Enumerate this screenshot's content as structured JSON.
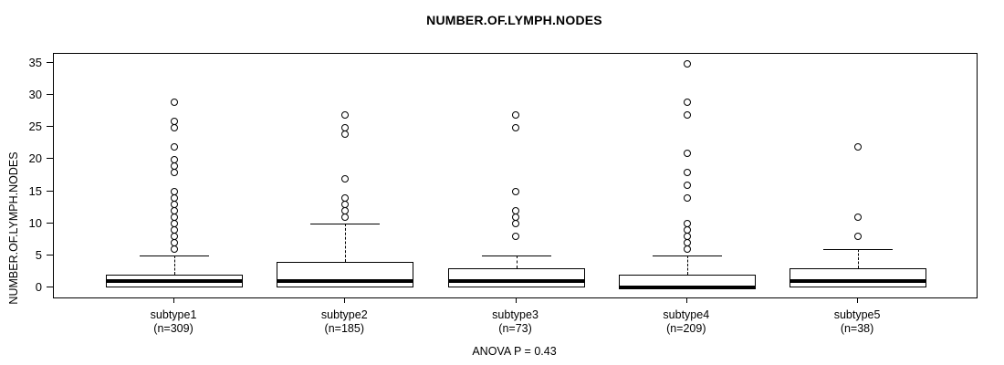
{
  "title": "NUMBER.OF.LYMPH.NODES",
  "footer": {
    "anova_text": "ANOVA P = 0.43"
  },
  "chart_data": {
    "type": "boxplot",
    "title": "NUMBER.OF.LYMPH.NODES",
    "ylabel": "NUMBER.OF.LYMPH.NODES",
    "xlabel": "",
    "ylim": [
      -1.57,
      36.57
    ],
    "yticks": [
      0,
      5,
      10,
      15,
      20,
      25,
      30,
      35
    ],
    "grid": false,
    "annotation": "ANOVA P = 0.43",
    "frame_color": "#000000",
    "box_fill": "#ffffff",
    "groups": [
      {
        "label": "subtype1",
        "n_label": "(n=309)",
        "n": 309,
        "whisker_low": 0,
        "q1": 0,
        "median": 1,
        "q3": 2,
        "whisker_high": 5,
        "outliers": [
          6,
          7,
          8,
          9,
          10,
          11,
          12,
          13,
          14,
          15,
          18,
          19,
          20,
          22,
          25,
          26,
          29
        ]
      },
      {
        "label": "subtype2",
        "n_label": "(n=185)",
        "n": 185,
        "whisker_low": 0,
        "q1": 0,
        "median": 1,
        "q3": 4,
        "whisker_high": 10,
        "outliers": [
          11,
          12,
          13,
          14,
          17,
          24,
          25,
          27
        ]
      },
      {
        "label": "subtype3",
        "n_label": "(n=73)",
        "n": 73,
        "whisker_low": 0,
        "q1": 0,
        "median": 1,
        "q3": 3,
        "whisker_high": 5,
        "outliers": [
          8,
          10,
          11,
          12,
          15,
          25,
          27
        ]
      },
      {
        "label": "subtype4",
        "n_label": "(n=209)",
        "n": 209,
        "whisker_low": 0,
        "q1": 0,
        "median": 0,
        "q3": 2,
        "whisker_high": 5,
        "outliers": [
          6,
          7,
          8,
          9,
          10,
          14,
          16,
          18,
          21,
          27,
          29,
          35
        ]
      },
      {
        "label": "subtype5",
        "n_label": "(n=38)",
        "n": 38,
        "whisker_low": 0,
        "q1": 0,
        "median": 1,
        "q3": 3,
        "whisker_high": 6,
        "outliers": [
          8,
          11,
          22
        ]
      }
    ]
  }
}
